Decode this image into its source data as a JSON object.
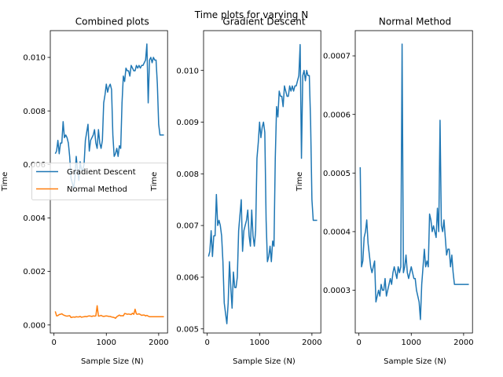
{
  "figure": {
    "suptitle": "Time plots for varying N"
  },
  "colors": {
    "gradient": "#1f77b4",
    "normal": "#ff7f0e"
  },
  "chart_data": [
    {
      "type": "line",
      "title": "Combined plots",
      "xlabel": "Sample Size (N)",
      "ylabel": "Time",
      "xlim": [
        -70,
        2170
      ],
      "ylim": [
        -0.0003,
        0.011
      ],
      "xticks": [
        0,
        1000,
        2000
      ],
      "xtick_labels": [
        "0",
        "1000",
        "2000"
      ],
      "yticks": [
        0,
        0.002,
        0.004,
        0.006,
        0.008,
        0.01
      ],
      "ytick_labels": [
        "0.000",
        "0.002",
        "0.004",
        "0.006",
        "0.008",
        "0.010"
      ],
      "legend": {
        "position": "center-left",
        "entries": [
          "Gradient Descent",
          "Normal Method"
        ]
      },
      "series": [
        {
          "name": "Gradient Descent",
          "color": "#1f77b4",
          "x": [
            25,
            50,
            75,
            100,
            125,
            150,
            175,
            200,
            225,
            250,
            275,
            300,
            325,
            350,
            375,
            400,
            425,
            450,
            475,
            500,
            525,
            550,
            575,
            600,
            625,
            650,
            675,
            700,
            725,
            750,
            775,
            800,
            825,
            850,
            875,
            900,
            925,
            950,
            975,
            1000,
            1025,
            1050,
            1075,
            1100,
            1125,
            1150,
            1175,
            1200,
            1225,
            1250,
            1275,
            1300,
            1325,
            1350,
            1375,
            1400,
            1425,
            1450,
            1475,
            1500,
            1525,
            1550,
            1575,
            1600,
            1625,
            1650,
            1675,
            1700,
            1725,
            1750,
            1775,
            1800,
            1825,
            1850,
            1875,
            1900,
            1925,
            1950,
            1975,
            2000,
            2025,
            2050,
            2075,
            2100
          ],
          "y": [
            0.0064,
            0.0065,
            0.0069,
            0.0064,
            0.0068,
            0.0068,
            0.0076,
            0.007,
            0.0071,
            0.007,
            0.0068,
            0.0063,
            0.0055,
            0.0053,
            0.0051,
            0.0055,
            0.0063,
            0.0058,
            0.0054,
            0.0061,
            0.0058,
            0.0058,
            0.006,
            0.0069,
            0.0072,
            0.0075,
            0.0065,
            0.0069,
            0.007,
            0.0071,
            0.0073,
            0.0068,
            0.0066,
            0.0073,
            0.0068,
            0.0066,
            0.0069,
            0.0083,
            0.0086,
            0.009,
            0.0087,
            0.0089,
            0.009,
            0.0088,
            0.0071,
            0.0063,
            0.0064,
            0.0066,
            0.0063,
            0.0067,
            0.0066,
            0.0083,
            0.0093,
            0.0091,
            0.0096,
            0.0095,
            0.0095,
            0.0093,
            0.0097,
            0.0096,
            0.0095,
            0.0095,
            0.0097,
            0.0096,
            0.0097,
            0.0096,
            0.0097,
            0.0097,
            0.0098,
            0.0099,
            0.0105,
            0.0083,
            0.0099,
            0.01,
            0.0098,
            0.01,
            0.0099,
            0.0099,
            0.009,
            0.0075,
            0.0071,
            0.0071,
            0.0071,
            0.0071
          ]
        },
        {
          "name": "Normal Method",
          "color": "#ff7f0e",
          "x": [
            25,
            50,
            75,
            100,
            125,
            150,
            175,
            200,
            225,
            250,
            275,
            300,
            325,
            350,
            375,
            400,
            425,
            450,
            475,
            500,
            525,
            550,
            575,
            600,
            625,
            650,
            675,
            700,
            725,
            750,
            775,
            800,
            825,
            850,
            875,
            900,
            925,
            950,
            975,
            1000,
            1025,
            1050,
            1075,
            1100,
            1125,
            1150,
            1175,
            1200,
            1225,
            1250,
            1275,
            1300,
            1325,
            1350,
            1375,
            1400,
            1425,
            1450,
            1475,
            1500,
            1525,
            1550,
            1575,
            1600,
            1625,
            1650,
            1675,
            1700,
            1725,
            1750,
            1775,
            1800,
            1825,
            1850,
            1875,
            1900,
            1925,
            1950,
            1975,
            2000,
            2025,
            2050,
            2075,
            2100
          ],
          "y": [
            0.00051,
            0.00034,
            0.00035,
            0.00039,
            0.0004,
            0.00042,
            0.00038,
            0.00036,
            0.00034,
            0.00033,
            0.00034,
            0.00035,
            0.00028,
            0.00029,
            0.0003,
            0.00029,
            0.00031,
            0.0003,
            0.0003,
            0.00032,
            0.00029,
            0.0003,
            0.00031,
            0.00032,
            0.00031,
            0.00033,
            0.00034,
            0.00033,
            0.00032,
            0.00034,
            0.00033,
            0.00034,
            0.00072,
            0.00033,
            0.00034,
            0.00036,
            0.00033,
            0.00032,
            0.00033,
            0.00034,
            0.00033,
            0.00032,
            0.00032,
            0.0003,
            0.00029,
            0.00028,
            0.00025,
            0.00031,
            0.00034,
            0.00037,
            0.00034,
            0.00035,
            0.00034,
            0.00043,
            0.00042,
            0.0004,
            0.00041,
            0.0004,
            0.00039,
            0.00044,
            0.0004,
            0.00059,
            0.00041,
            0.0004,
            0.00042,
            0.00039,
            0.00036,
            0.00037,
            0.00037,
            0.00034,
            0.00036,
            0.00033,
            0.00031,
            0.00031,
            0.00031,
            0.00031,
            0.00031,
            0.00031,
            0.00031,
            0.00031,
            0.00031,
            0.00031,
            0.00031,
            0.00031
          ]
        }
      ]
    },
    {
      "type": "line",
      "title": "Gradient Descent",
      "xlabel": "Sample Size (N)",
      "ylabel": "Time",
      "xlim": [
        -70,
        2170
      ],
      "ylim": [
        0.00492,
        0.01077
      ],
      "xticks": [
        0,
        1000,
        2000
      ],
      "xtick_labels": [
        "0",
        "1000",
        "2000"
      ],
      "yticks": [
        0.005,
        0.006,
        0.007,
        0.008,
        0.009,
        0.01
      ],
      "ytick_labels": [
        "0.005",
        "0.006",
        "0.007",
        "0.008",
        "0.009",
        "0.010"
      ],
      "series": [
        {
          "name": "Gradient Descent",
          "color": "#1f77b4",
          "x": [
            25,
            50,
            75,
            100,
            125,
            150,
            175,
            200,
            225,
            250,
            275,
            300,
            325,
            350,
            375,
            400,
            425,
            450,
            475,
            500,
            525,
            550,
            575,
            600,
            625,
            650,
            675,
            700,
            725,
            750,
            775,
            800,
            825,
            850,
            875,
            900,
            925,
            950,
            975,
            1000,
            1025,
            1050,
            1075,
            1100,
            1125,
            1150,
            1175,
            1200,
            1225,
            1250,
            1275,
            1300,
            1325,
            1350,
            1375,
            1400,
            1425,
            1450,
            1475,
            1500,
            1525,
            1550,
            1575,
            1600,
            1625,
            1650,
            1675,
            1700,
            1725,
            1750,
            1775,
            1800,
            1825,
            1850,
            1875,
            1900,
            1925,
            1950,
            1975,
            2000,
            2025,
            2050,
            2075,
            2100
          ],
          "y": [
            0.0064,
            0.0065,
            0.0069,
            0.0064,
            0.0068,
            0.0068,
            0.0076,
            0.007,
            0.0071,
            0.007,
            0.0068,
            0.0063,
            0.0055,
            0.0053,
            0.0051,
            0.0055,
            0.0063,
            0.0058,
            0.0054,
            0.0061,
            0.0058,
            0.0058,
            0.006,
            0.0069,
            0.0072,
            0.0075,
            0.0065,
            0.0069,
            0.007,
            0.0071,
            0.0073,
            0.0068,
            0.0066,
            0.0073,
            0.0068,
            0.0066,
            0.0069,
            0.0083,
            0.0086,
            0.009,
            0.0087,
            0.0089,
            0.009,
            0.0088,
            0.0071,
            0.0063,
            0.0064,
            0.0066,
            0.0063,
            0.0067,
            0.0066,
            0.0083,
            0.0093,
            0.0091,
            0.0096,
            0.0095,
            0.0095,
            0.0093,
            0.0097,
            0.0096,
            0.0095,
            0.0095,
            0.0097,
            0.0096,
            0.0097,
            0.0096,
            0.0097,
            0.0097,
            0.0098,
            0.0099,
            0.0105,
            0.0083,
            0.0099,
            0.01,
            0.0098,
            0.01,
            0.0099,
            0.0099,
            0.009,
            0.0075,
            0.0071,
            0.0071,
            0.0071,
            0.0071
          ]
        }
      ]
    },
    {
      "type": "line",
      "title": "Normal Method",
      "xlabel": "Sample Size (N)",
      "ylabel": "Time",
      "xlim": [
        -70,
        2170
      ],
      "ylim": [
        0.000227,
        0.000743
      ],
      "xticks": [
        0,
        1000,
        2000
      ],
      "xtick_labels": [
        "0",
        "1000",
        "2000"
      ],
      "yticks": [
        0.0003,
        0.0004,
        0.0005,
        0.0006,
        0.0007
      ],
      "ytick_labels": [
        "0.0003",
        "0.0004",
        "0.0005",
        "0.0006",
        "0.0007"
      ],
      "series": [
        {
          "name": "Normal Method",
          "color": "#1f77b4",
          "x": [
            25,
            50,
            75,
            100,
            125,
            150,
            175,
            200,
            225,
            250,
            275,
            300,
            325,
            350,
            375,
            400,
            425,
            450,
            475,
            500,
            525,
            550,
            575,
            600,
            625,
            650,
            675,
            700,
            725,
            750,
            775,
            800,
            825,
            850,
            875,
            900,
            925,
            950,
            975,
            1000,
            1025,
            1050,
            1075,
            1100,
            1125,
            1150,
            1175,
            1200,
            1225,
            1250,
            1275,
            1300,
            1325,
            1350,
            1375,
            1400,
            1425,
            1450,
            1475,
            1500,
            1525,
            1550,
            1575,
            1600,
            1625,
            1650,
            1675,
            1700,
            1725,
            1750,
            1775,
            1800,
            1825,
            1850,
            1875,
            1900,
            1925,
            1950,
            1975,
            2000,
            2025,
            2050,
            2075,
            2100
          ],
          "y": [
            0.00051,
            0.00034,
            0.00035,
            0.00039,
            0.0004,
            0.00042,
            0.00038,
            0.00036,
            0.00034,
            0.00033,
            0.00034,
            0.00035,
            0.00028,
            0.00029,
            0.0003,
            0.00029,
            0.00031,
            0.0003,
            0.0003,
            0.00032,
            0.00029,
            0.0003,
            0.00031,
            0.00032,
            0.00031,
            0.00033,
            0.00034,
            0.00033,
            0.00032,
            0.00034,
            0.00033,
            0.00034,
            0.00072,
            0.00033,
            0.00034,
            0.00036,
            0.00033,
            0.00032,
            0.00033,
            0.00034,
            0.00033,
            0.00032,
            0.00032,
            0.0003,
            0.00029,
            0.00028,
            0.00025,
            0.00031,
            0.00034,
            0.00037,
            0.00034,
            0.00035,
            0.00034,
            0.00043,
            0.00042,
            0.0004,
            0.00041,
            0.0004,
            0.00039,
            0.00044,
            0.0004,
            0.00059,
            0.00041,
            0.0004,
            0.00042,
            0.00039,
            0.00036,
            0.00037,
            0.00037,
            0.00034,
            0.00036,
            0.00033,
            0.00031,
            0.00031,
            0.00031,
            0.00031,
            0.00031,
            0.00031,
            0.00031,
            0.00031,
            0.00031,
            0.00031,
            0.00031,
            0.00031
          ]
        }
      ]
    }
  ]
}
